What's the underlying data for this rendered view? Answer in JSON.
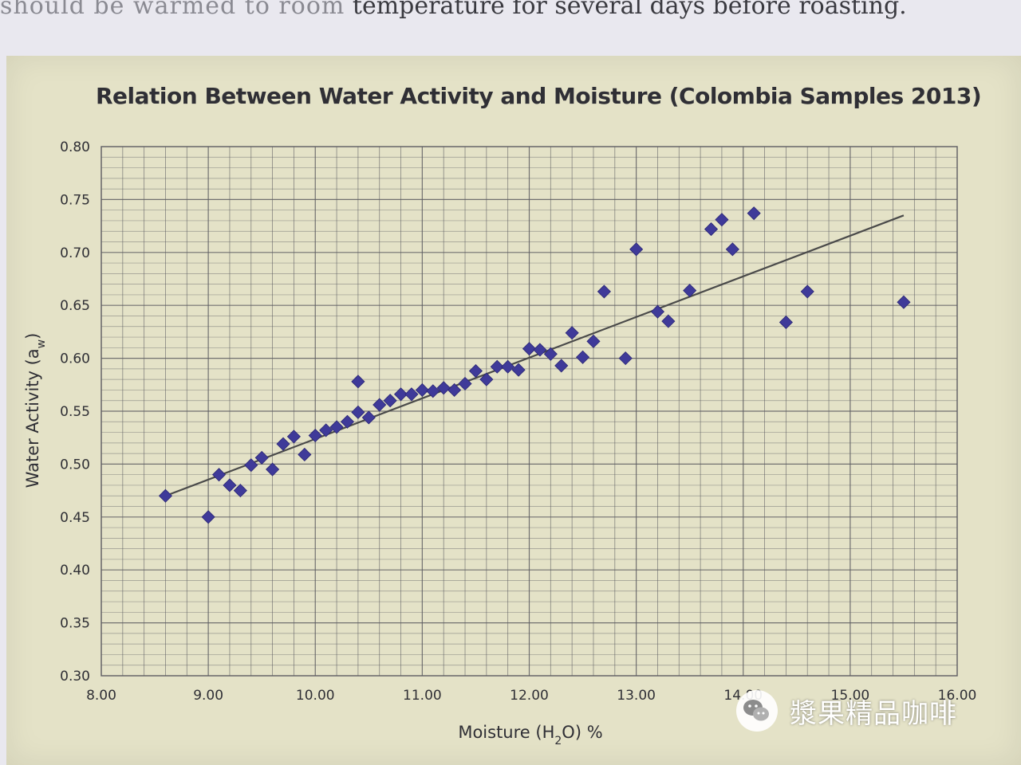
{
  "page": {
    "top_text_ghost": "should be warmed to room",
    "top_text": "temperature for several days before roasting."
  },
  "watermark": {
    "text": "漿果精品咖啡",
    "icon": "wechat-logo-icon"
  },
  "colors": {
    "panel": "#e4e2c7",
    "grid": "#5d5d62",
    "marker": "#3f3a99",
    "trendline": "#4a4a4a"
  },
  "chart_data": {
    "type": "scatter",
    "title": "Relation Between Water Activity and Moisture (Colombia Samples 2013)",
    "xlabel": "Moisture (H2O) %",
    "ylabel": "Water Activity (aw)",
    "xlim": [
      8.0,
      16.0
    ],
    "ylim": [
      0.3,
      0.8
    ],
    "x_ticks": [
      "8.00",
      "9.00",
      "10.00",
      "11.00",
      "12.00",
      "13.00",
      "14.00",
      "15.00",
      "16.00"
    ],
    "y_ticks": [
      "0.30",
      "0.35",
      "0.40",
      "0.45",
      "0.50",
      "0.55",
      "0.60",
      "0.65",
      "0.70",
      "0.75",
      "0.80"
    ],
    "grid": true,
    "marker": "diamond",
    "trendline": {
      "x": [
        8.6,
        15.5
      ],
      "y": [
        0.47,
        0.735
      ]
    },
    "points": [
      [
        8.6,
        0.47
      ],
      [
        9.0,
        0.45
      ],
      [
        9.1,
        0.49
      ],
      [
        9.2,
        0.48
      ],
      [
        9.3,
        0.475
      ],
      [
        9.4,
        0.499
      ],
      [
        9.5,
        0.506
      ],
      [
        9.6,
        0.495
      ],
      [
        9.7,
        0.519
      ],
      [
        9.8,
        0.526
      ],
      [
        9.9,
        0.509
      ],
      [
        10.0,
        0.527
      ],
      [
        10.1,
        0.532
      ],
      [
        10.2,
        0.535
      ],
      [
        10.3,
        0.54
      ],
      [
        10.4,
        0.549
      ],
      [
        10.4,
        0.578
      ],
      [
        10.5,
        0.544
      ],
      [
        10.6,
        0.556
      ],
      [
        10.7,
        0.56
      ],
      [
        10.8,
        0.566
      ],
      [
        10.9,
        0.566
      ],
      [
        11.0,
        0.57
      ],
      [
        11.1,
        0.569
      ],
      [
        11.2,
        0.572
      ],
      [
        11.3,
        0.57
      ],
      [
        11.4,
        0.576
      ],
      [
        11.5,
        0.588
      ],
      [
        11.6,
        0.58
      ],
      [
        11.7,
        0.592
      ],
      [
        11.8,
        0.592
      ],
      [
        11.9,
        0.589
      ],
      [
        12.0,
        0.609
      ],
      [
        12.1,
        0.608
      ],
      [
        12.2,
        0.604
      ],
      [
        12.3,
        0.593
      ],
      [
        12.4,
        0.624
      ],
      [
        12.5,
        0.601
      ],
      [
        12.6,
        0.616
      ],
      [
        12.7,
        0.663
      ],
      [
        12.9,
        0.6
      ],
      [
        13.0,
        0.703
      ],
      [
        13.2,
        0.644
      ],
      [
        13.3,
        0.635
      ],
      [
        13.5,
        0.664
      ],
      [
        13.7,
        0.722
      ],
      [
        13.8,
        0.731
      ],
      [
        13.9,
        0.703
      ],
      [
        14.1,
        0.737
      ],
      [
        14.4,
        0.634
      ],
      [
        14.6,
        0.663
      ],
      [
        15.5,
        0.653
      ]
    ]
  }
}
